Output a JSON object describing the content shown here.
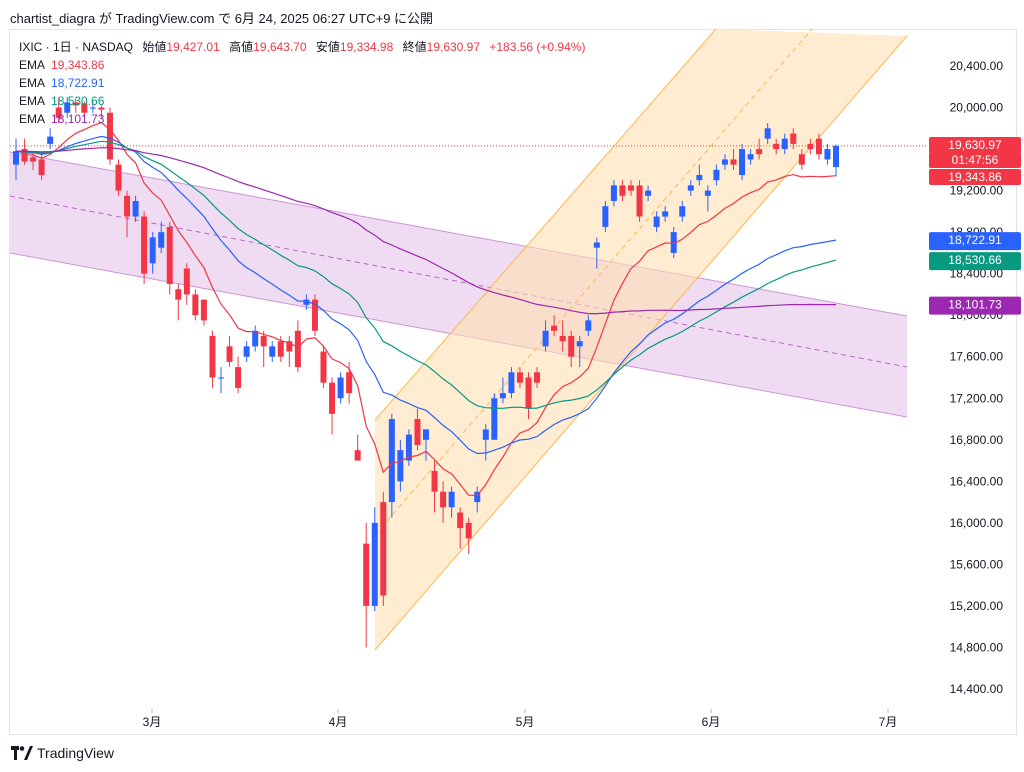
{
  "header": {
    "text": "chartist_diagra が TradingView.com で 6月 24, 2025 06:27 UTC+9 に公開"
  },
  "legend": {
    "symbol": "IXIC · 1日 · NASDAQ",
    "open_label": "始値",
    "open": "19,427.01",
    "high_label": "高値",
    "high": "19,643.70",
    "low_label": "安値",
    "low": "19,334.98",
    "close_label": "終値",
    "close": "19,630.97",
    "change": "+183.56 (+0.94%)",
    "ema": [
      {
        "label": "EMA",
        "value": "19,343.86",
        "color": "#f23645"
      },
      {
        "label": "EMA",
        "value": "18,722.91",
        "color": "#2962ff"
      },
      {
        "label": "EMA",
        "value": "18,530.66",
        "color": "#089981"
      },
      {
        "label": "EMA",
        "value": "18,101.73",
        "color": "#9c27b0"
      }
    ]
  },
  "price_tags": {
    "last_price": "19,630.97",
    "countdown": "01:47:56",
    "ema1": "19,343.86",
    "ema2": "18,722.91",
    "ema3": "18,530.66",
    "ema4": "18,101.73"
  },
  "footer": {
    "brand": "TradingView",
    "logo_icon": "tradingview-logo-icon"
  },
  "colors": {
    "up": "#2962ff",
    "down": "#f23645",
    "ema1": "#f23645",
    "ema2": "#2962ff",
    "ema3": "#089981",
    "ema4": "#9c27b0",
    "channel_up": "#ff9800",
    "channel_down": "#ce93d8"
  },
  "chart_data": {
    "type": "candlestick",
    "title": "",
    "y_ticks": [
      "20,400.00",
      "20,000.00",
      "19,600.00",
      "19,200.00",
      "18,800.00",
      "18,400.00",
      "18,000.00",
      "17,600.00",
      "17,200.00",
      "16,800.00",
      "16,400.00",
      "16,000.00",
      "15,600.00",
      "15,200.00",
      "14,800.00",
      "14,400.00"
    ],
    "x_ticks": [
      "3月",
      "4月",
      "5月",
      "6月",
      "7月"
    ],
    "ylim": [
      14200,
      20800
    ],
    "candles": [
      {
        "o": 19450,
        "c": 19580,
        "h": 19700,
        "l": 19300
      },
      {
        "o": 19600,
        "c": 19480,
        "h": 19700,
        "l": 19450
      },
      {
        "o": 19520,
        "c": 19480,
        "h": 19580,
        "l": 19400
      },
      {
        "o": 19500,
        "c": 19350,
        "h": 19550,
        "l": 19300
      },
      {
        "o": 19650,
        "c": 19720,
        "h": 19800,
        "l": 19600
      },
      {
        "o": 20000,
        "c": 19900,
        "h": 20100,
        "l": 19850
      },
      {
        "o": 19950,
        "c": 20050,
        "h": 20100,
        "l": 19900
      },
      {
        "o": 20050,
        "c": 20020,
        "h": 20080,
        "l": 19950
      },
      {
        "o": 20040,
        "c": 19950,
        "h": 20060,
        "l": 19900
      },
      {
        "o": 20000,
        "c": 20000,
        "h": 20060,
        "l": 19950
      },
      {
        "o": 20000,
        "c": 19980,
        "h": 20020,
        "l": 19900
      },
      {
        "o": 19950,
        "c": 19500,
        "h": 20000,
        "l": 19450
      },
      {
        "o": 19450,
        "c": 19200,
        "h": 19500,
        "l": 19150
      },
      {
        "o": 19150,
        "c": 18950,
        "h": 19200,
        "l": 18750
      },
      {
        "o": 18950,
        "c": 19100,
        "h": 19150,
        "l": 18900
      },
      {
        "o": 18950,
        "c": 18400,
        "h": 19000,
        "l": 18300
      },
      {
        "o": 18500,
        "c": 18750,
        "h": 18800,
        "l": 18400
      },
      {
        "o": 18650,
        "c": 18800,
        "h": 18900,
        "l": 18600
      },
      {
        "o": 18850,
        "c": 18300,
        "h": 18900,
        "l": 18200
      },
      {
        "o": 18250,
        "c": 18150,
        "h": 18300,
        "l": 17950
      },
      {
        "o": 18450,
        "c": 18200,
        "h": 18500,
        "l": 18100
      },
      {
        "o": 18200,
        "c": 18000,
        "h": 18250,
        "l": 17950
      },
      {
        "o": 18150,
        "c": 17950,
        "h": 18150,
        "l": 17900
      },
      {
        "o": 17800,
        "c": 17400,
        "h": 17850,
        "l": 17300
      },
      {
        "o": 17400,
        "c": 17400,
        "h": 17500,
        "l": 17250
      },
      {
        "o": 17700,
        "c": 17550,
        "h": 17800,
        "l": 17500
      },
      {
        "o": 17500,
        "c": 17300,
        "h": 17600,
        "l": 17250
      },
      {
        "o": 17600,
        "c": 17700,
        "h": 17750,
        "l": 17550
      },
      {
        "o": 17700,
        "c": 17850,
        "h": 17900,
        "l": 17650
      },
      {
        "o": 17800,
        "c": 17700,
        "h": 17850,
        "l": 17500
      },
      {
        "o": 17600,
        "c": 17700,
        "h": 17750,
        "l": 17550
      },
      {
        "o": 17750,
        "c": 17600,
        "h": 17800,
        "l": 17550
      },
      {
        "o": 17750,
        "c": 17650,
        "h": 17800,
        "l": 17500
      },
      {
        "o": 17850,
        "c": 17500,
        "h": 17950,
        "l": 17450
      },
      {
        "o": 18100,
        "c": 18150,
        "h": 18200,
        "l": 18050
      },
      {
        "o": 18150,
        "c": 17850,
        "h": 18200,
        "l": 17800
      },
      {
        "o": 17650,
        "c": 17350,
        "h": 17700,
        "l": 17300
      },
      {
        "o": 17350,
        "c": 17050,
        "h": 17400,
        "l": 16850
      },
      {
        "o": 17200,
        "c": 17400,
        "h": 17450,
        "l": 17150
      },
      {
        "o": 17450,
        "c": 17250,
        "h": 17550,
        "l": 17150
      },
      {
        "o": 16700,
        "c": 16600,
        "h": 16850,
        "l": 16600
      },
      {
        "o": 15800,
        "c": 15200,
        "h": 16000,
        "l": 14800
      },
      {
        "o": 15200,
        "c": 16000,
        "h": 16150,
        "l": 15150
      },
      {
        "o": 16200,
        "c": 15300,
        "h": 16300,
        "l": 15200
      },
      {
        "o": 16200,
        "c": 17000,
        "h": 17050,
        "l": 16050
      },
      {
        "o": 16400,
        "c": 16700,
        "h": 16800,
        "l": 16300
      },
      {
        "o": 16600,
        "c": 16850,
        "h": 16900,
        "l": 16550
      },
      {
        "o": 17000,
        "c": 16750,
        "h": 17100,
        "l": 16700
      },
      {
        "o": 16800,
        "c": 16900,
        "h": 16900,
        "l": 16600
      },
      {
        "o": 16500,
        "c": 16300,
        "h": 16600,
        "l": 16100
      },
      {
        "o": 16300,
        "c": 16150,
        "h": 16400,
        "l": 16000
      },
      {
        "o": 16150,
        "c": 16300,
        "h": 16350,
        "l": 16050
      },
      {
        "o": 16100,
        "c": 15950,
        "h": 16150,
        "l": 15750
      },
      {
        "o": 16000,
        "c": 15850,
        "h": 16050,
        "l": 15700
      },
      {
        "o": 16200,
        "c": 16300,
        "h": 16350,
        "l": 16100
      },
      {
        "o": 16800,
        "c": 16900,
        "h": 16950,
        "l": 16600
      },
      {
        "o": 16800,
        "c": 17200,
        "h": 17250,
        "l": 16800
      },
      {
        "o": 17200,
        "c": 17250,
        "h": 17400,
        "l": 17150
      },
      {
        "o": 17250,
        "c": 17450,
        "h": 17500,
        "l": 17200
      },
      {
        "o": 17450,
        "c": 17350,
        "h": 17500,
        "l": 17300
      },
      {
        "o": 17400,
        "c": 17100,
        "h": 17450,
        "l": 17000
      },
      {
        "o": 17450,
        "c": 17350,
        "h": 17500,
        "l": 17300
      },
      {
        "o": 17700,
        "c": 17850,
        "h": 17950,
        "l": 17650
      },
      {
        "o": 17900,
        "c": 17850,
        "h": 18000,
        "l": 17800
      },
      {
        "o": 17800,
        "c": 17750,
        "h": 17950,
        "l": 17650
      },
      {
        "o": 17800,
        "c": 17600,
        "h": 17850,
        "l": 17500
      },
      {
        "o": 17700,
        "c": 17750,
        "h": 17800,
        "l": 17500
      },
      {
        "o": 17850,
        "c": 17950,
        "h": 18000,
        "l": 17800
      },
      {
        "o": 18650,
        "c": 18700,
        "h": 18750,
        "l": 18450
      },
      {
        "o": 18850,
        "c": 19050,
        "h": 19100,
        "l": 18800
      },
      {
        "o": 19100,
        "c": 19250,
        "h": 19300,
        "l": 19050
      },
      {
        "o": 19250,
        "c": 19150,
        "h": 19300,
        "l": 19100
      },
      {
        "o": 19250,
        "c": 19200,
        "h": 19300,
        "l": 19150
      },
      {
        "o": 19250,
        "c": 18950,
        "h": 19300,
        "l": 18900
      },
      {
        "o": 19150,
        "c": 19200,
        "h": 19250,
        "l": 19100
      },
      {
        "o": 18850,
        "c": 18950,
        "h": 19000,
        "l": 18800
      },
      {
        "o": 18950,
        "c": 19000,
        "h": 19050,
        "l": 18900
      },
      {
        "o": 18600,
        "c": 18800,
        "h": 18850,
        "l": 18550
      },
      {
        "o": 18950,
        "c": 19050,
        "h": 19100,
        "l": 18900
      },
      {
        "o": 19200,
        "c": 19250,
        "h": 19300,
        "l": 19150
      },
      {
        "o": 19300,
        "c": 19350,
        "h": 19450,
        "l": 19250
      },
      {
        "o": 19150,
        "c": 19200,
        "h": 19250,
        "l": 19000
      },
      {
        "o": 19300,
        "c": 19400,
        "h": 19450,
        "l": 19250
      },
      {
        "o": 19450,
        "c": 19500,
        "h": 19550,
        "l": 19400
      },
      {
        "o": 19500,
        "c": 19450,
        "h": 19600,
        "l": 19400
      },
      {
        "o": 19350,
        "c": 19600,
        "h": 19650,
        "l": 19300
      },
      {
        "o": 19500,
        "c": 19550,
        "h": 19600,
        "l": 19450
      },
      {
        "o": 19600,
        "c": 19550,
        "h": 19700,
        "l": 19500
      },
      {
        "o": 19700,
        "c": 19800,
        "h": 19850,
        "l": 19650
      },
      {
        "o": 19650,
        "c": 19600,
        "h": 19700,
        "l": 19550
      },
      {
        "o": 19600,
        "c": 19700,
        "h": 19750,
        "l": 19550
      },
      {
        "o": 19750,
        "c": 19650,
        "h": 19800,
        "l": 19600
      },
      {
        "o": 19550,
        "c": 19450,
        "h": 19600,
        "l": 19400
      },
      {
        "o": 19650,
        "c": 19600,
        "h": 19700,
        "l": 19550
      },
      {
        "o": 19700,
        "c": 19550,
        "h": 19750,
        "l": 19500
      },
      {
        "o": 19500,
        "c": 19600,
        "h": 19650,
        "l": 19450
      },
      {
        "o": 19427.01,
        "c": 19630.97,
        "h": 19643.7,
        "l": 19334.98
      }
    ]
  }
}
